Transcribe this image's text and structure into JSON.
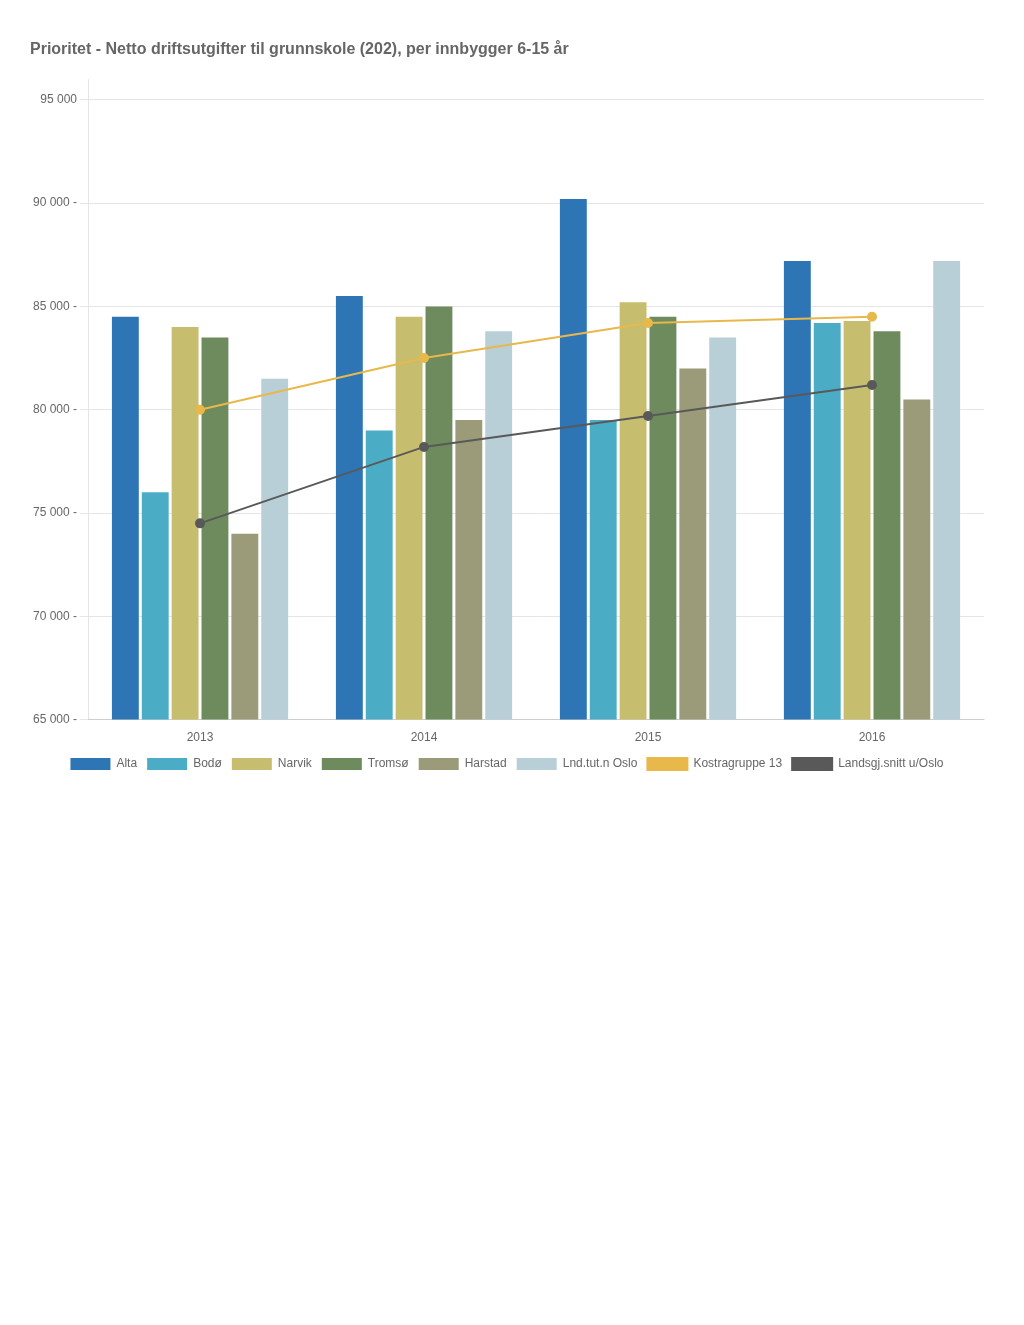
{
  "chart_data": {
    "type": "bar",
    "title": "Prioritet - Netto driftsutgifter til grunnskole (202), per innbygger 6-15 år",
    "categories": [
      "2013",
      "2014",
      "2015",
      "2016"
    ],
    "series": [
      {
        "name": "Alta",
        "type": "bar",
        "color": "#2E75B6",
        "values": [
          84500,
          85500,
          90200,
          87200
        ]
      },
      {
        "name": "Bodø",
        "type": "bar",
        "color": "#4BACC6",
        "values": [
          76000,
          79000,
          79500,
          84200
        ]
      },
      {
        "name": "Narvik",
        "type": "bar",
        "color": "#C6BE6E",
        "values": [
          84000,
          84500,
          85200,
          84300
        ]
      },
      {
        "name": "Tromsø",
        "type": "bar",
        "color": "#6E8B5E",
        "values": [
          83500,
          85000,
          84500,
          83800
        ]
      },
      {
        "name": "Harstad",
        "type": "bar",
        "color": "#9B9B7A",
        "values": [
          74000,
          79500,
          82000,
          80500
        ]
      },
      {
        "name": "Lnd.tut.n Oslo",
        "type": "bar",
        "color": "#B8CFD8",
        "values": [
          81500,
          83800,
          83500,
          87200
        ]
      },
      {
        "name": "Kostragruppe 13",
        "type": "line",
        "color": "#E8B84B",
        "marker": "circle",
        "values": [
          80000,
          82500,
          84200,
          84500
        ]
      },
      {
        "name": "Landsgj.snitt u/Oslo",
        "type": "line",
        "color": "#595959",
        "marker": "circle",
        "values": [
          74500,
          78200,
          79700,
          81200
        ]
      }
    ],
    "ylim": [
      65000,
      96000
    ],
    "yticks": [
      {
        "value": 65000,
        "label": "65 000 -"
      },
      {
        "value": 70000,
        "label": "70 000 -"
      },
      {
        "value": 75000,
        "label": "75 000 -"
      },
      {
        "value": 80000,
        "label": "80 000 -"
      },
      {
        "value": 85000,
        "label": "85 000 -"
      },
      {
        "value": 90000,
        "label": "90 000 -"
      },
      {
        "value": 95000,
        "label": "95 000"
      }
    ],
    "grid": true,
    "legend": "bottom"
  }
}
